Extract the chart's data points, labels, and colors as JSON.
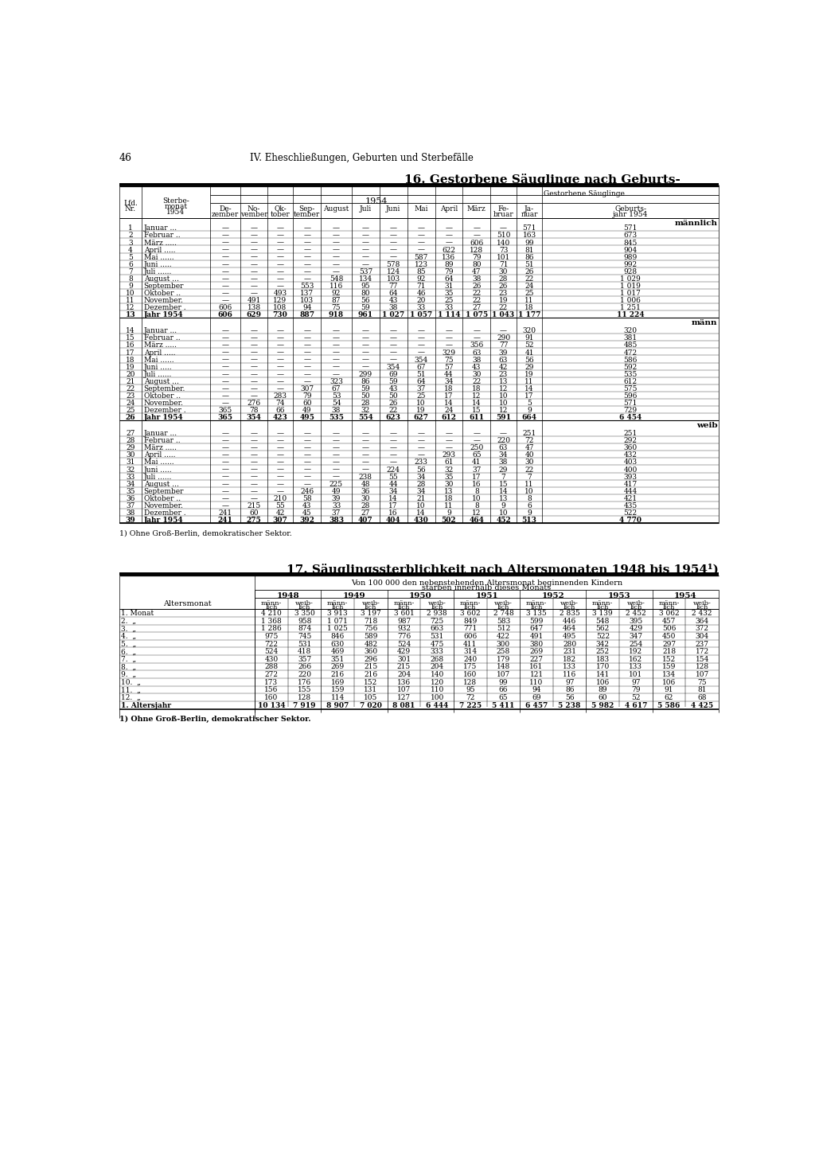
{
  "page_number": "46",
  "header_text": "IV. Eheschließungen, Geburten und Sterbefälle",
  "table1_title": "16. Gestorbene Säuglinge nach Geburts-",
  "table1_subtitle_right": "Gestorbene Säuglinge",
  "table1_year": "1954",
  "col_headers": [
    "De-\nzember",
    "No-\nvember",
    "Ok-\ntober",
    "Sep-\ntember",
    "August",
    "Juli",
    "Juni",
    "Mai",
    "April",
    "März",
    "Fe-\nbruar",
    "Ja-\nnuar",
    "Geburts-\njahr 1954"
  ],
  "section_maennlich": "männlich",
  "section_maenn": "männ",
  "section_weib": "weib",
  "table1_data": [
    [
      "1",
      "Januar ...",
      "-",
      "-",
      "-",
      "-",
      "-",
      "-",
      "-",
      "-",
      "-",
      "-",
      "-",
      "571",
      "571"
    ],
    [
      "2",
      "Februar ..",
      "-",
      "-",
      "-",
      "-",
      "-",
      "-",
      "-",
      "-",
      "-",
      "-",
      "510",
      "163",
      "673"
    ],
    [
      "3",
      "März .....",
      "-",
      "-",
      "-",
      "-",
      "-",
      "-",
      "-",
      "-",
      "-",
      "606",
      "140",
      "99",
      "845"
    ],
    [
      "4",
      "April .....",
      "-",
      "-",
      "-",
      "-",
      "-",
      "-",
      "-",
      "-",
      "622",
      "128",
      "73",
      "81",
      "904"
    ],
    [
      "5",
      "Mai ......",
      "-",
      "-",
      "-",
      "-",
      "-",
      "-",
      "-",
      "587",
      "136",
      "79",
      "101",
      "86",
      "989"
    ],
    [
      "6",
      "Juni .....",
      "-",
      "-",
      "-",
      "-",
      "-",
      "-",
      "578",
      "123",
      "89",
      "80",
      "71",
      "51",
      "992"
    ],
    [
      "7",
      "Juli ......",
      "-",
      "-",
      "-",
      "-",
      "-",
      "537",
      "124",
      "85",
      "79",
      "47",
      "30",
      "26",
      "928"
    ],
    [
      "8",
      "August ...",
      "-",
      "-",
      "-",
      "-",
      "548",
      "134",
      "103",
      "92",
      "64",
      "38",
      "28",
      "22",
      "1 029"
    ],
    [
      "9",
      "September",
      "-",
      "-",
      "-",
      "553",
      "116",
      "95",
      "77",
      "71",
      "31",
      "26",
      "26",
      "24",
      "1 019"
    ],
    [
      "10",
      "Oktober ..",
      "-",
      "-",
      "493",
      "137",
      "92",
      "80",
      "64",
      "46",
      "35",
      "22",
      "23",
      "25",
      "1 017"
    ],
    [
      "11",
      "November.",
      "-",
      "491",
      "129",
      "103",
      "87",
      "56",
      "43",
      "20",
      "25",
      "22",
      "19",
      "11",
      "1 006"
    ],
    [
      "12",
      "Dezember .",
      "606",
      "138",
      "108",
      "94",
      "75",
      "59",
      "38",
      "33",
      "33",
      "27",
      "22",
      "18",
      "1 251"
    ],
    [
      "13",
      "Jahr 1954",
      "606",
      "629",
      "730",
      "887",
      "918",
      "961",
      "1 027",
      "1 057",
      "1 114",
      "1 075",
      "1 043",
      "1 177",
      "11 224"
    ]
  ],
  "table1_data_maenn": [
    [
      "14",
      "Januar ...",
      "-",
      "-",
      "-",
      "-",
      "-",
      "-",
      "-",
      "-",
      "-",
      "-",
      "-",
      "320",
      "320"
    ],
    [
      "15",
      "Februar ..",
      "-",
      "-",
      "-",
      "-",
      "-",
      "-",
      "-",
      "-",
      "-",
      "-",
      "290",
      "91",
      "381"
    ],
    [
      "16",
      "März .....",
      "-",
      "-",
      "-",
      "-",
      "-",
      "-",
      "-",
      "-",
      "-",
      "356",
      "77",
      "52",
      "485"
    ],
    [
      "17",
      "April .....",
      "-",
      "-",
      "-",
      "-",
      "-",
      "-",
      "-",
      "-",
      "329",
      "63",
      "39",
      "41",
      "472"
    ],
    [
      "18",
      "Mai ......",
      "-",
      "-",
      "-",
      "-",
      "-",
      "-",
      "-",
      "354",
      "75",
      "38",
      "63",
      "56",
      "586"
    ],
    [
      "19",
      "Juni .....",
      "-",
      "-",
      "-",
      "-",
      "-",
      "-",
      "354",
      "67",
      "57",
      "43",
      "42",
      "29",
      "592"
    ],
    [
      "20",
      "Juli ......",
      "-",
      "-",
      "-",
      "-",
      "-",
      "299",
      "69",
      "51",
      "44",
      "30",
      "23",
      "19",
      "535"
    ],
    [
      "21",
      "August ...",
      "-",
      "-",
      "-",
      "-",
      "323",
      "86",
      "59",
      "64",
      "34",
      "22",
      "13",
      "11",
      "612"
    ],
    [
      "22",
      "September.",
      "-",
      "-",
      "-",
      "307",
      "67",
      "59",
      "43",
      "37",
      "18",
      "18",
      "12",
      "14",
      "575"
    ],
    [
      "23",
      "Oktober ..",
      "-",
      "-",
      "283",
      "79",
      "53",
      "50",
      "50",
      "25",
      "17",
      "12",
      "10",
      "17",
      "596"
    ],
    [
      "24",
      "November.",
      "-",
      "276",
      "74",
      "60",
      "54",
      "28",
      "26",
      "10",
      "14",
      "14",
      "10",
      "5",
      "571"
    ],
    [
      "25",
      "Dezember .",
      "365",
      "78",
      "66",
      "49",
      "38",
      "32",
      "22",
      "19",
      "24",
      "15",
      "12",
      "9",
      "729"
    ],
    [
      "26",
      "Jahr 1954",
      "365",
      "354",
      "423",
      "495",
      "535",
      "554",
      "623",
      "627",
      "612",
      "611",
      "591",
      "664",
      "6 454"
    ]
  ],
  "table1_data_weib": [
    [
      "27",
      "Januar ...",
      "-",
      "-",
      "-",
      "-",
      "-",
      "-",
      "-",
      "-",
      "-",
      "-",
      "-",
      "251",
      "251"
    ],
    [
      "28",
      "Februar ..",
      "-",
      "-",
      "-",
      "-",
      "-",
      "-",
      "-",
      "-",
      "-",
      "-",
      "220",
      "72",
      "292"
    ],
    [
      "29",
      "März .....",
      "-",
      "-",
      "-",
      "-",
      "-",
      "-",
      "-",
      "-",
      "-",
      "250",
      "63",
      "47",
      "360"
    ],
    [
      "30",
      "April .....",
      "-",
      "-",
      "-",
      "-",
      "-",
      "-",
      "-",
      "-",
      "293",
      "65",
      "34",
      "40",
      "432"
    ],
    [
      "31",
      "Mai ......",
      "-",
      "-",
      "-",
      "-",
      "-",
      "-",
      "-",
      "233",
      "61",
      "41",
      "38",
      "30",
      "403"
    ],
    [
      "32",
      "Juni .....",
      "-",
      "-",
      "-",
      "-",
      "-",
      "-",
      "224",
      "56",
      "32",
      "37",
      "29",
      "22",
      "400"
    ],
    [
      "33",
      "Juli ......",
      "-",
      "-",
      "-",
      "-",
      "-",
      "238",
      "55",
      "34",
      "35",
      "17",
      "7",
      "7",
      "393"
    ],
    [
      "34",
      "August ...",
      "-",
      "-",
      "-",
      "-",
      "225",
      "48",
      "44",
      "28",
      "30",
      "16",
      "15",
      "11",
      "417"
    ],
    [
      "35",
      "September",
      "-",
      "-",
      "-",
      "246",
      "49",
      "36",
      "34",
      "34",
      "13",
      "8",
      "14",
      "10",
      "444"
    ],
    [
      "36",
      "Oktober ..",
      "-",
      "-",
      "210",
      "58",
      "39",
      "30",
      "14",
      "21",
      "18",
      "10",
      "13",
      "8",
      "421"
    ],
    [
      "37",
      "November.",
      "-",
      "215",
      "55",
      "43",
      "33",
      "28",
      "17",
      "10",
      "11",
      "8",
      "9",
      "6",
      "435"
    ],
    [
      "38",
      "Dezember .",
      "241",
      "60",
      "42",
      "45",
      "37",
      "27",
      "16",
      "14",
      "9",
      "12",
      "10",
      "9",
      "522"
    ],
    [
      "39",
      "Jahr 1954",
      "241",
      "275",
      "307",
      "392",
      "383",
      "407",
      "404",
      "430",
      "502",
      "464",
      "452",
      "513",
      "4 770"
    ]
  ],
  "footnote1": "1) Ohne Groß-Berlin, demokratischer Sektor.",
  "table2_title": "17. Säuglingssterblichkeit nach Altersmonaten 1948 bis 1954¹)",
  "table2_subtitle_line1": "Von 100 000 den nebenstehenden Altersmonat beginnenden Kindern",
  "table2_subtitle_line2": "starben innerhalb dieses Monats",
  "table2_col_years": [
    "1948",
    "1949",
    "1950",
    "1951",
    "1952",
    "1953",
    "1954"
  ],
  "table2_row_header": "Altersmonat",
  "table2_data": [
    [
      "1. Monat                ",
      "4 210",
      "3 350",
      "3 913",
      "3 197",
      "3 601",
      "2 938",
      "3 602",
      "2 748",
      "3 135",
      "2 835",
      "3 139",
      "2 452",
      "3 062",
      "2 432"
    ],
    [
      "2.  „                 ",
      "1 368",
      "958",
      "1 071",
      "718",
      "987",
      "725",
      "849",
      "583",
      "599",
      "446",
      "548",
      "395",
      "457",
      "364"
    ],
    [
      "3.  „                 ",
      "1 286",
      "874",
      "1 025",
      "756",
      "932",
      "663",
      "771",
      "512",
      "647",
      "464",
      "562",
      "429",
      "506",
      "372"
    ],
    [
      "4.  „                 ",
      "975",
      "745",
      "846",
      "589",
      "776",
      "531",
      "606",
      "422",
      "491",
      "495",
      "522",
      "347",
      "450",
      "304"
    ],
    [
      "5.  „                 ",
      "722",
      "531",
      "630",
      "482",
      "524",
      "475",
      "411",
      "300",
      "380",
      "280",
      "342",
      "254",
      "297",
      "237"
    ],
    [
      "6.  „                 ",
      "524",
      "418",
      "469",
      "360",
      "429",
      "333",
      "314",
      "258",
      "269",
      "231",
      "252",
      "192",
      "218",
      "172"
    ],
    [
      "7.  „                 ",
      "430",
      "357",
      "351",
      "296",
      "301",
      "268",
      "240",
      "179",
      "227",
      "182",
      "183",
      "162",
      "152",
      "154"
    ],
    [
      "8.  „                 ",
      "288",
      "266",
      "269",
      "215",
      "215",
      "204",
      "175",
      "148",
      "161",
      "133",
      "170",
      "133",
      "159",
      "128"
    ],
    [
      "9.  „                 ",
      "272",
      "220",
      "216",
      "216",
      "204",
      "140",
      "160",
      "107",
      "121",
      "116",
      "141",
      "101",
      "134",
      "107"
    ],
    [
      "10.  „                 ",
      "173",
      "176",
      "169",
      "152",
      "136",
      "120",
      "128",
      "99",
      "110",
      "97",
      "106",
      "97",
      "106",
      "75"
    ],
    [
      "11.  „                 ",
      "156",
      "155",
      "159",
      "131",
      "107",
      "110",
      "95",
      "66",
      "94",
      "86",
      "89",
      "79",
      "91",
      "81"
    ],
    [
      "12.  „                 ",
      "160",
      "128",
      "114",
      "105",
      "127",
      "100",
      "72",
      "65",
      "69",
      "56",
      "60",
      "52",
      "62",
      "68"
    ],
    [
      "1. Altersjahr            ",
      "10 134",
      "7 919",
      "8 907",
      "7 020",
      "8 081",
      "6 444",
      "7 225",
      "5 411",
      "6 457",
      "5 238",
      "5 982",
      "4 617",
      "5 586",
      "4 425"
    ]
  ],
  "footnote2": "1) Ohne Groß-Berlin, demokratischer Sektor."
}
